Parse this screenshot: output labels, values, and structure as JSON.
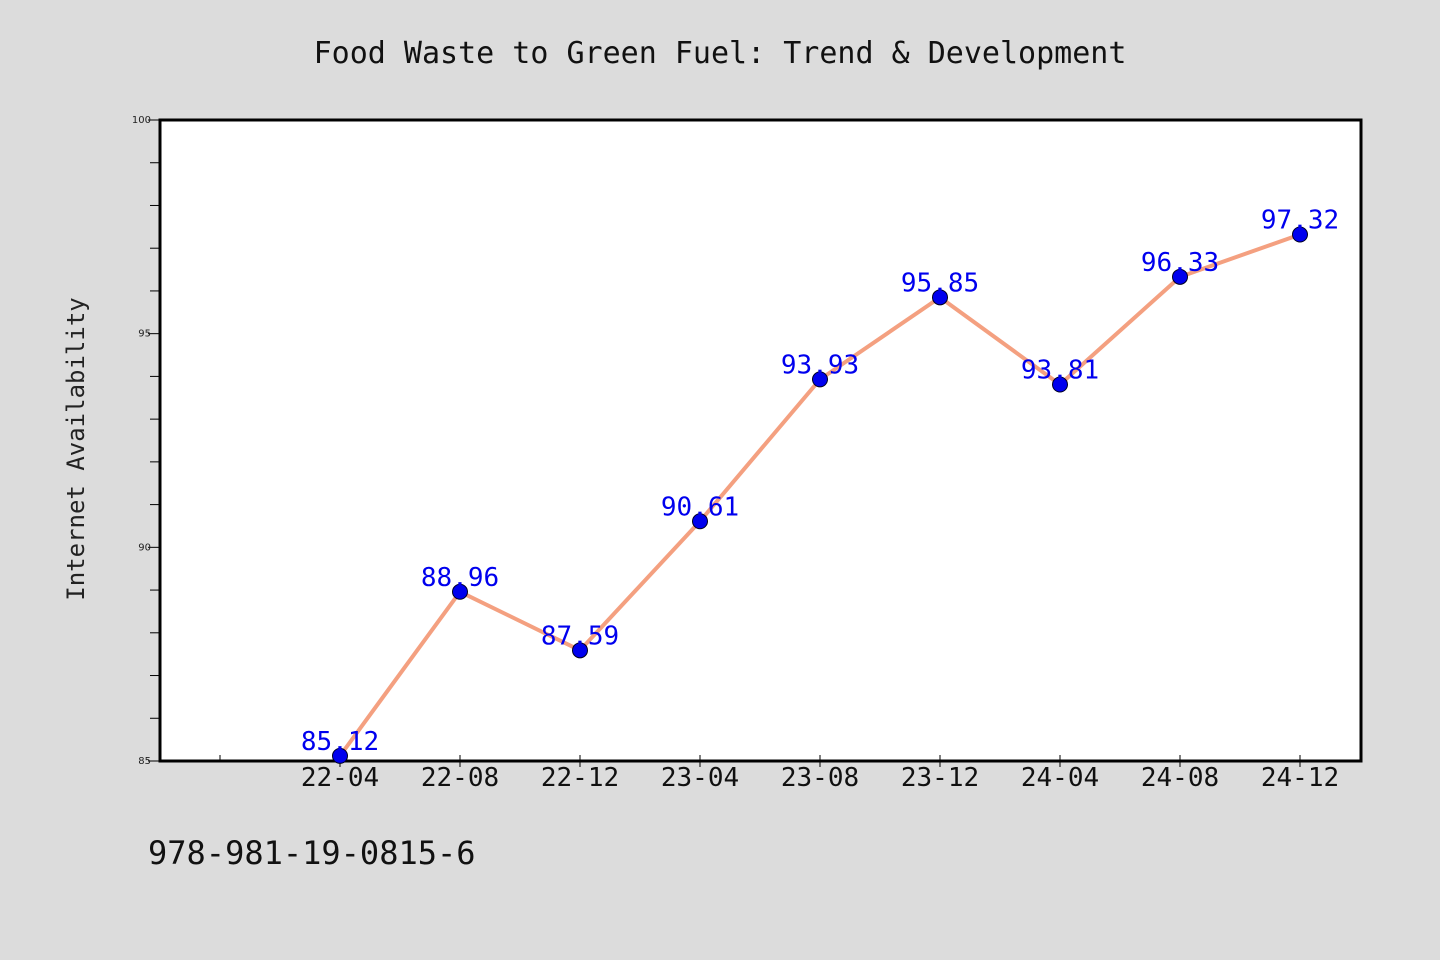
{
  "chart_data": {
    "type": "line",
    "title": "Food Waste to Green Fuel: Trend & Development",
    "xlabel": "",
    "ylabel": "Internet Availability",
    "categories": [
      "22-04",
      "22-08",
      "22-12",
      "23-04",
      "23-08",
      "23-12",
      "24-04",
      "24-08",
      "24-12"
    ],
    "series": [
      {
        "values": [
          85.12,
          88.96,
          87.59,
          90.61,
          93.93,
          95.85,
          93.81,
          96.33,
          97.32
        ],
        "data_labels": [
          "85.12",
          "88.96",
          "87.59",
          "90.61",
          "93.93",
          "95.85",
          "93.81",
          "96.33",
          "97.32"
        ],
        "line_color": "#f4a080",
        "marker_color": "#0000ee"
      }
    ],
    "ylim": [
      85,
      100
    ],
    "yticks": [
      85,
      90,
      95,
      100
    ],
    "ytick_labels": [
      "85",
      "90",
      "95",
      "100"
    ],
    "grid": false,
    "legend": "none",
    "label_color": "#0000ee"
  },
  "footer": {
    "text": "978-981-19-0815-6"
  },
  "colors": {
    "background": "#dcdcdc",
    "plot_background": "#ffffff",
    "axis": "#000000"
  }
}
